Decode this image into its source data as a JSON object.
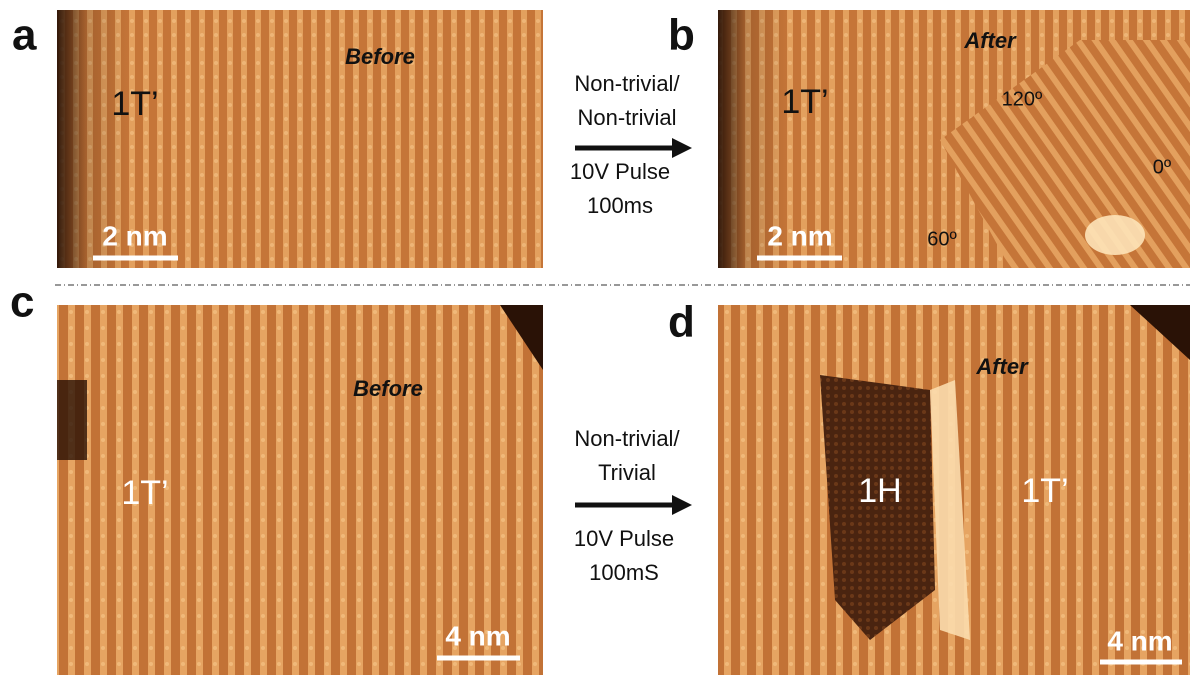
{
  "panels": [
    {
      "label": "a",
      "caption": "Before",
      "annotations": [
        "1T’"
      ],
      "scale_bar": "2 nm"
    },
    {
      "label": "b",
      "caption": "After",
      "annotations": [
        "1T’",
        "120º",
        "0º",
        "60º"
      ],
      "scale_bar": "2 nm"
    },
    {
      "label": "c",
      "caption": "Before",
      "annotations": [
        "1T’"
      ],
      "scale_bar": "4 nm"
    },
    {
      "label": "d",
      "caption": "After",
      "annotations": [
        "1H",
        "1T’"
      ],
      "scale_bar": "4 nm"
    }
  ],
  "transitions": [
    {
      "lines": [
        "Non-trivial/",
        "Non-trivial"
      ],
      "pulse": [
        "10V Pulse",
        "100ms"
      ]
    },
    {
      "lines": [
        "Non-trivial/",
        "Trivial"
      ],
      "pulse": [
        "10V Pulse",
        "100mS"
      ]
    }
  ]
}
